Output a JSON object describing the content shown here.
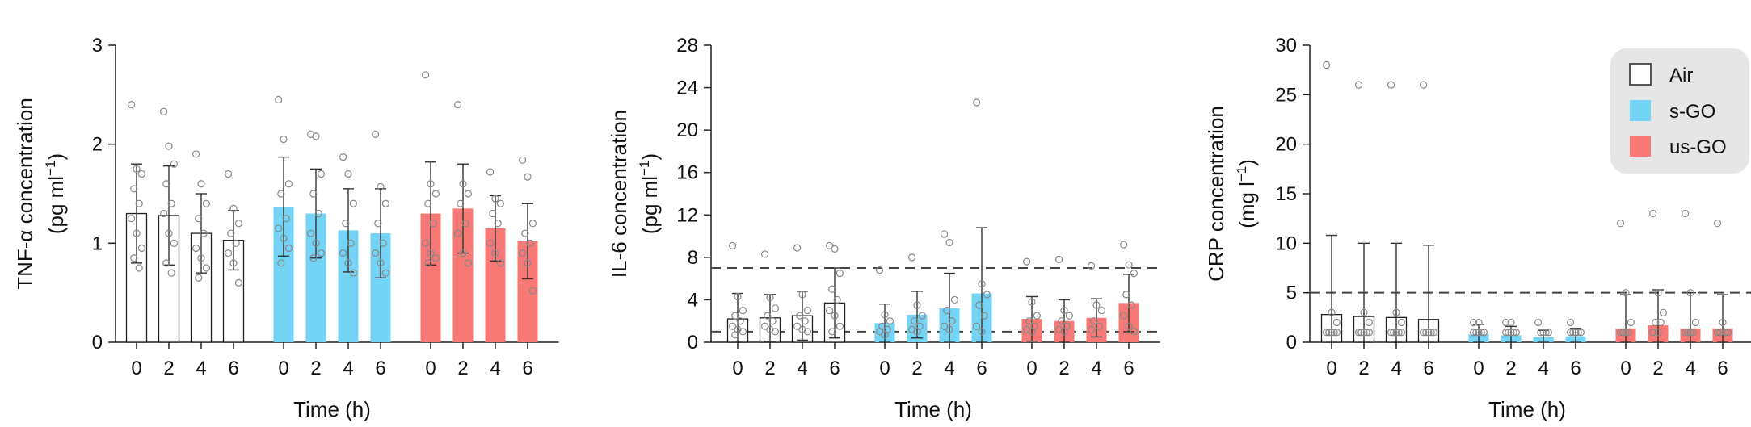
{
  "colors": {
    "Air": "#ffffff",
    "s-GO": "#74d4f5",
    "us-GO": "#f87876",
    "outline": "#222222",
    "point": "#888888",
    "legend_bg": "#e6e6e6"
  },
  "legend": {
    "entries": [
      "Air",
      "s-GO",
      "us-GO"
    ]
  },
  "chart_data": [
    {
      "type": "bar",
      "ylabel_line1": "TNF-α concentration",
      "ylabel_unit_pre": "(pg ml",
      "ylabel_unit_sup": "−1",
      "ylabel_unit_post": ")",
      "xlabel": "Time (h)",
      "ylim": [
        0,
        3
      ],
      "yticks": [
        "0",
        "1",
        "2",
        "3"
      ],
      "categories": [
        "0",
        "2",
        "4",
        "6"
      ],
      "series": [
        {
          "name": "Air",
          "means": [
            1.3,
            1.28,
            1.1,
            1.03
          ],
          "sd": [
            0.5,
            0.5,
            0.4,
            0.3
          ],
          "points": [
            [
              2.4,
              1.75,
              1.7,
              1.55,
              1.4,
              1.25,
              1.1,
              0.95,
              0.85,
              0.75
            ],
            [
              2.33,
              1.98,
              1.8,
              1.6,
              1.4,
              1.3,
              1.1,
              1.0,
              0.8,
              0.7
            ],
            [
              1.9,
              1.6,
              1.4,
              1.25,
              1.1,
              0.95,
              0.85,
              0.75,
              0.65
            ],
            [
              1.7,
              1.35,
              1.2,
              1.1,
              1.0,
              0.9,
              0.8,
              0.6
            ]
          ]
        },
        {
          "name": "s-GO",
          "means": [
            1.37,
            1.3,
            1.13,
            1.1
          ],
          "sd": [
            0.5,
            0.45,
            0.42,
            0.45
          ],
          "points": [
            [
              2.45,
              2.05,
              1.6,
              1.5,
              1.25,
              1.15,
              1.05,
              0.95,
              0.8
            ],
            [
              2.1,
              2.08,
              1.7,
              1.5,
              1.3,
              1.1,
              1.0,
              0.9,
              0.85
            ],
            [
              1.87,
              1.7,
              1.4,
              1.2,
              1.0,
              0.9,
              0.8,
              0.7
            ],
            [
              2.1,
              1.57,
              1.4,
              1.2,
              1.0,
              0.9,
              0.8,
              0.7
            ]
          ]
        },
        {
          "name": "us-GO",
          "means": [
            1.3,
            1.35,
            1.15,
            1.02
          ],
          "sd": [
            0.52,
            0.45,
            0.33,
            0.38
          ],
          "points": [
            [
              2.7,
              1.6,
              1.5,
              1.4,
              1.2,
              1.0,
              0.9,
              0.85,
              0.8
            ],
            [
              2.4,
              1.6,
              1.5,
              1.4,
              1.2,
              1.1,
              0.9,
              0.8
            ],
            [
              1.72,
              1.45,
              1.4,
              1.3,
              1.2,
              1.0,
              0.9,
              0.8
            ],
            [
              1.84,
              1.67,
              1.2,
              1.1,
              1.0,
              0.9,
              0.8,
              0.52
            ]
          ]
        }
      ]
    },
    {
      "type": "bar",
      "ylabel_line1": "IL-6 concentration",
      "ylabel_unit_pre": "(pg ml",
      "ylabel_unit_sup": "−1",
      "ylabel_unit_post": ")",
      "xlabel": "Time (h)",
      "ylim": [
        0,
        28
      ],
      "yticks": [
        "0",
        "4",
        "8",
        "12",
        "16",
        "20",
        "24",
        "28"
      ],
      "reference_lines": [
        7,
        1
      ],
      "categories": [
        "0",
        "2",
        "4",
        "6"
      ],
      "series": [
        {
          "name": "Air",
          "means": [
            2.2,
            2.3,
            2.5,
            3.7
          ],
          "sd": [
            2.4,
            2.2,
            2.3,
            3.3
          ],
          "points": [
            [
              9.1,
              4.3,
              3.0,
              2.5,
              2.0,
              1.5,
              1.2,
              1.0,
              0.7
            ],
            [
              8.3,
              4.2,
              3.2,
              2.5,
              2.0,
              1.5,
              1.2,
              1.0
            ],
            [
              8.9,
              4.5,
              3.0,
              2.5,
              2.0,
              1.5,
              1.2,
              1.0
            ],
            [
              9.1,
              8.8,
              6.5,
              5.0,
              4.0,
              3.0,
              2.5,
              1.5,
              1.0
            ]
          ]
        },
        {
          "name": "s-GO",
          "means": [
            1.8,
            2.6,
            3.2,
            4.6
          ],
          "sd": [
            1.8,
            2.2,
            3.3,
            6.2
          ],
          "points": [
            [
              6.8,
              2.6,
              2.0,
              1.5,
              1.2,
              1.0,
              0.7
            ],
            [
              8.0,
              3.5,
              2.5,
              2.0,
              1.5,
              1.2,
              1.0
            ],
            [
              10.2,
              9.4,
              4.0,
              3.0,
              2.0,
              1.5,
              1.2
            ],
            [
              22.6,
              5.5,
              4.5,
              3.5,
              2.5,
              1.5,
              1.0
            ]
          ]
        },
        {
          "name": "us-GO",
          "means": [
            2.2,
            2.0,
            2.3,
            3.7
          ],
          "sd": [
            2.1,
            2.0,
            1.8,
            2.7
          ],
          "points": [
            [
              7.6,
              3.8,
              2.5,
              2.0,
              1.5,
              1.2,
              1.0
            ],
            [
              7.8,
              3.0,
              2.5,
              2.0,
              1.5,
              1.2,
              1.0
            ],
            [
              7.2,
              3.5,
              3.0,
              2.0,
              1.5,
              1.2
            ],
            [
              9.2,
              7.3,
              6.5,
              4.5,
              3.5,
              2.5,
              1.5,
              1.0
            ]
          ]
        }
      ]
    },
    {
      "type": "bar",
      "ylabel_line1": "CRP concentration",
      "ylabel_unit_pre": "(mg l",
      "ylabel_unit_sup": "−1",
      "ylabel_unit_post": ")",
      "xlabel": "Time (h)",
      "ylim": [
        0,
        30
      ],
      "yticks": [
        "0",
        "5",
        "10",
        "15",
        "20",
        "25",
        "30"
      ],
      "reference_lines": [
        5
      ],
      "categories": [
        "0",
        "2",
        "4",
        "6"
      ],
      "series": [
        {
          "name": "Air",
          "means": [
            2.8,
            2.6,
            2.5,
            2.3
          ],
          "sd": [
            8.0,
            7.4,
            7.5,
            7.5
          ],
          "points": [
            [
              28,
              3,
              2,
              1,
              1,
              1,
              1,
              1,
              1
            ],
            [
              26,
              3,
              2,
              1,
              1,
              1,
              1,
              1,
              1
            ],
            [
              26,
              3,
              2,
              1,
              1,
              1,
              1,
              1,
              1
            ],
            [
              26,
              1,
              1,
              1,
              1,
              1
            ]
          ]
        },
        {
          "name": "s-GO",
          "means": [
            0.8,
            0.7,
            0.5,
            0.6
          ],
          "sd": [
            1.0,
            0.9,
            0.7,
            0.8
          ],
          "points": [
            [
              2,
              2,
              1,
              1,
              1,
              1,
              1
            ],
            [
              2,
              2,
              1,
              1,
              1,
              1,
              1
            ],
            [
              2,
              1,
              1,
              1,
              1
            ],
            [
              2,
              1,
              1,
              1,
              1,
              1,
              1
            ]
          ]
        },
        {
          "name": "us-GO",
          "means": [
            1.4,
            1.7,
            1.4,
            1.4
          ],
          "sd": [
            3.4,
            3.6,
            3.6,
            3.4
          ],
          "points": [
            [
              12,
              5,
              2,
              1,
              1,
              1,
              1
            ],
            [
              13,
              5,
              3,
              2,
              2,
              1,
              1
            ],
            [
              13,
              5,
              2,
              1,
              1,
              1,
              1
            ],
            [
              12,
              2,
              1,
              1,
              1,
              1
            ]
          ]
        }
      ]
    }
  ]
}
